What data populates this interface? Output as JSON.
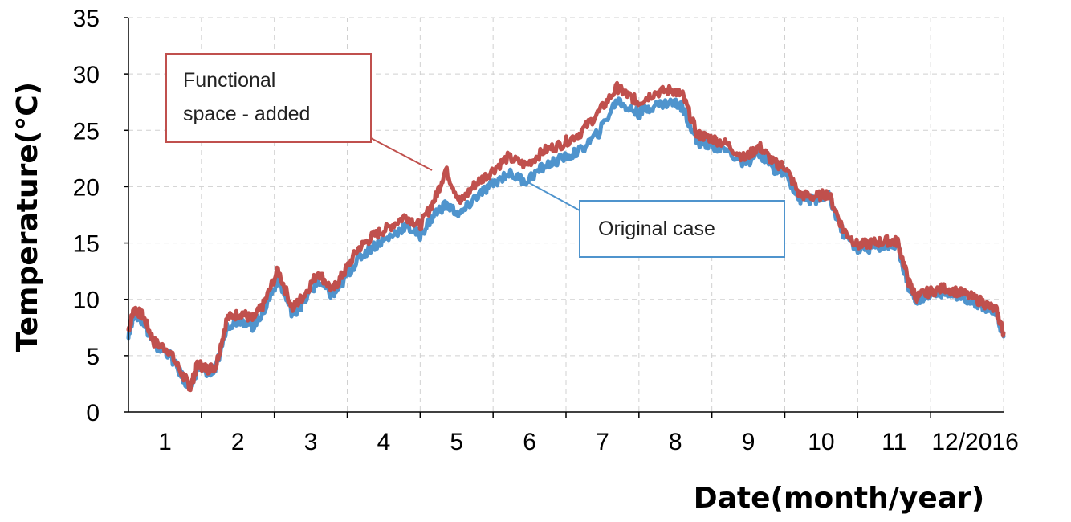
{
  "chart_data": {
    "type": "line",
    "xlabel": "Date(month/year)",
    "ylabel": "Temperature(°C)",
    "ylim": [
      0,
      35
    ],
    "xlim": [
      0,
      12
    ],
    "yticks": [
      0,
      5,
      10,
      15,
      20,
      25,
      30,
      35
    ],
    "xtick_labels": [
      "1",
      "2",
      "3",
      "4",
      "5",
      "6",
      "7",
      "8",
      "9",
      "10",
      "11",
      "12/2016"
    ],
    "grid": true,
    "colors": {
      "added": "#c0504d",
      "original": "#4f94cd"
    },
    "annotations": [
      {
        "text_lines": [
          "Functional",
          "space - added"
        ],
        "series": "Functional space - added",
        "points_to_month": 4.2
      },
      {
        "text_lines": [
          "Original case"
        ],
        "series": "Original case",
        "points_to_month": 5.3
      }
    ],
    "series": [
      {
        "name": "Functional space - added",
        "color": "#c0504d",
        "month": [
          0,
          0.08,
          0.2,
          0.35,
          0.55,
          0.75,
          0.85,
          0.95,
          1.08,
          1.2,
          1.35,
          1.55,
          1.7,
          1.85,
          2.05,
          2.25,
          2.4,
          2.6,
          2.8,
          2.95,
          3.15,
          3.35,
          3.55,
          3.8,
          4.0,
          4.2,
          4.35,
          4.55,
          4.75,
          4.95,
          5.2,
          5.45,
          5.7,
          5.95,
          6.2,
          6.45,
          6.7,
          6.85,
          7.0,
          7.2,
          7.45,
          7.6,
          7.8,
          7.95,
          8.2,
          8.45,
          8.65,
          8.85,
          9.0,
          9.2,
          9.4,
          9.6,
          9.8,
          10.0,
          10.2,
          10.4,
          10.55,
          10.7,
          10.8,
          10.95,
          11.2,
          11.45,
          11.7,
          11.9,
          12.0
        ],
        "values": [
          7.3,
          9.2,
          8.5,
          6.2,
          5.5,
          3.2,
          2.2,
          4.3,
          3.8,
          4.1,
          8.3,
          8.8,
          8.2,
          9.5,
          12.6,
          9.2,
          10.3,
          12.4,
          10.8,
          12.3,
          14.5,
          15.6,
          16.3,
          17.4,
          16.5,
          18.9,
          21.5,
          18.6,
          20.2,
          21.2,
          22.6,
          21.9,
          23.2,
          23.8,
          24.8,
          26.6,
          28.8,
          28.1,
          27.5,
          28.3,
          28.6,
          28.1,
          24.6,
          24.4,
          23.8,
          22.5,
          23.6,
          22.1,
          21.8,
          19.3,
          19.1,
          19.4,
          16.2,
          14.8,
          15.0,
          15.2,
          15.1,
          11.5,
          10.2,
          10.6,
          11.0,
          10.5,
          9.8,
          9.0,
          7.0
        ]
      },
      {
        "name": "Original case",
        "color": "#4f94cd",
        "month": [
          0,
          0.08,
          0.2,
          0.35,
          0.55,
          0.75,
          0.85,
          0.95,
          1.08,
          1.2,
          1.35,
          1.55,
          1.7,
          1.85,
          2.05,
          2.25,
          2.4,
          2.6,
          2.8,
          2.95,
          3.15,
          3.35,
          3.55,
          3.8,
          4.0,
          4.2,
          4.35,
          4.55,
          4.75,
          4.95,
          5.2,
          5.45,
          5.7,
          5.95,
          6.2,
          6.45,
          6.7,
          6.85,
          7.0,
          7.2,
          7.45,
          7.6,
          7.8,
          7.95,
          8.2,
          8.45,
          8.65,
          8.85,
          9.0,
          9.2,
          9.4,
          9.6,
          9.8,
          10.0,
          10.2,
          10.4,
          10.55,
          10.7,
          10.8,
          10.95,
          11.2,
          11.45,
          11.7,
          11.9,
          12.0
        ],
        "values": [
          7.0,
          8.8,
          8.1,
          5.9,
          5.2,
          3.0,
          2.0,
          4.0,
          3.5,
          3.8,
          7.7,
          8.2,
          7.6,
          8.9,
          11.8,
          8.7,
          9.7,
          11.6,
          10.3,
          11.6,
          13.6,
          14.7,
          15.4,
          16.5,
          15.7,
          17.6,
          18.4,
          17.5,
          19.0,
          20.0,
          21.2,
          20.5,
          21.8,
          22.5,
          23.2,
          24.8,
          27.7,
          27.0,
          26.5,
          27.2,
          27.5,
          27.1,
          23.9,
          23.8,
          23.2,
          22.0,
          23.0,
          21.6,
          21.3,
          18.9,
          18.8,
          19.1,
          15.9,
          14.4,
          14.6,
          14.8,
          14.7,
          11.1,
          9.9,
          10.3,
          10.7,
          10.2,
          9.5,
          8.7,
          6.7
        ]
      }
    ]
  }
}
